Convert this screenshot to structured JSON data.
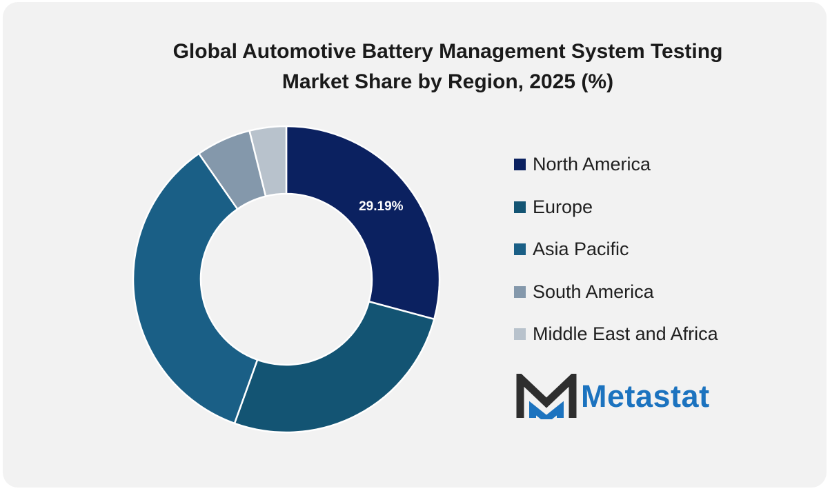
{
  "chart_data": {
    "type": "pie",
    "variant": "donut",
    "title_lines": [
      "Global Automotive Battery Management System Testing",
      "Market Share by Region, 2025 (%)"
    ],
    "categories": [
      "North America",
      "Europe",
      "Asia Pacific",
      "South America",
      "Middle East and Africa"
    ],
    "values": [
      29.19,
      26.3,
      34.84,
      5.8,
      3.87
    ],
    "colors": [
      "#0b2160",
      "#135473",
      "#1a5f86",
      "#8498ab",
      "#b8c2cc"
    ],
    "data_labels": [
      "29.19%",
      null,
      null,
      null,
      null
    ],
    "legend_position": "right"
  },
  "logo": {
    "text": "Metastat",
    "icon": "metastat-m-logo-icon",
    "colors": {
      "dark": "#2e2e2e",
      "accent": "#1c73bf"
    }
  },
  "background_color": "#f2f2f2"
}
